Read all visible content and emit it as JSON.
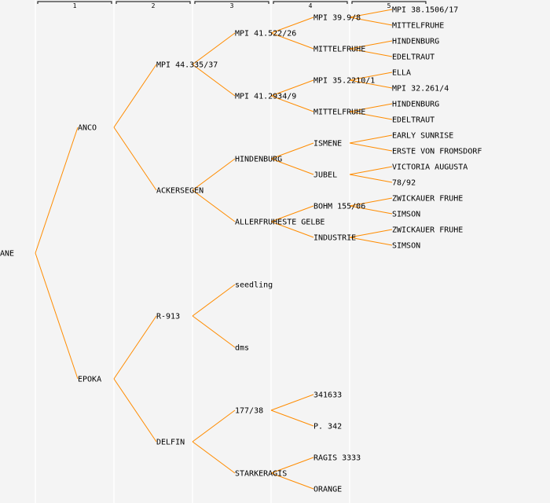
{
  "columns": [
    "1",
    "2",
    "3",
    "4",
    "5"
  ],
  "colors": {
    "background": "#f4f4f4",
    "line": "#ff8c00",
    "separator": "#ffffff",
    "text": "#000000"
  },
  "tree": {
    "name": "ANE",
    "children": [
      {
        "name": "ANCO",
        "children": [
          {
            "name": "MPI 44.335/37",
            "children": [
              {
                "name": "MPI 41.522/26",
                "children": [
                  {
                    "name": "MPI 39.9/8",
                    "children": [
                      {
                        "name": "MPI 38.1506/17"
                      },
                      {
                        "name": "MITTELFRUHE"
                      }
                    ]
                  },
                  {
                    "name": "MITTELFRUHE",
                    "children": [
                      {
                        "name": "HINDENBURG"
                      },
                      {
                        "name": "EDELTRAUT"
                      }
                    ]
                  }
                ]
              },
              {
                "name": "MPI 41.2934/9",
                "children": [
                  {
                    "name": "MPI 35.2210/1",
                    "children": [
                      {
                        "name": "ELLA"
                      },
                      {
                        "name": "MPI 32.261/4"
                      }
                    ]
                  },
                  {
                    "name": "MITTELFRUHE",
                    "children": [
                      {
                        "name": "HINDENBURG"
                      },
                      {
                        "name": "EDELTRAUT"
                      }
                    ]
                  }
                ]
              }
            ]
          },
          {
            "name": "ACKERSEGEN",
            "children": [
              {
                "name": "HINDENBURG",
                "children": [
                  {
                    "name": "ISMENE",
                    "children": [
                      {
                        "name": "EARLY SUNRISE"
                      },
                      {
                        "name": "ERSTE VON FROMSDORF"
                      }
                    ]
                  },
                  {
                    "name": "JUBEL",
                    "children": [
                      {
                        "name": "VICTORIA AUGUSTA"
                      },
                      {
                        "name": "78/92"
                      }
                    ]
                  }
                ]
              },
              {
                "name": "ALLERFRUHESTE GELBE",
                "children": [
                  {
                    "name": "BOHM 155/06",
                    "children": [
                      {
                        "name": "ZWICKAUER FRUHE"
                      },
                      {
                        "name": "SIMSON"
                      }
                    ]
                  },
                  {
                    "name": "INDUSTRIE",
                    "children": [
                      {
                        "name": "ZWICKAUER FRUHE"
                      },
                      {
                        "name": "SIMSON"
                      }
                    ]
                  }
                ]
              }
            ]
          }
        ]
      },
      {
        "name": "EPOKA",
        "children": [
          {
            "name": "R-913",
            "children": [
              {
                "name": "seedling"
              },
              {
                "name": "dms"
              }
            ]
          },
          {
            "name": "DELFIN",
            "children": [
              {
                "name": "177/38",
                "children": [
                  {
                    "name": "341633"
                  },
                  {
                    "name": "P. 342"
                  }
                ]
              },
              {
                "name": "STARKERAGIS",
                "children": [
                  {
                    "name": "RAGIS 3333"
                  },
                  {
                    "name": "ORANGE"
                  }
                ]
              }
            ]
          }
        ]
      }
    ]
  }
}
